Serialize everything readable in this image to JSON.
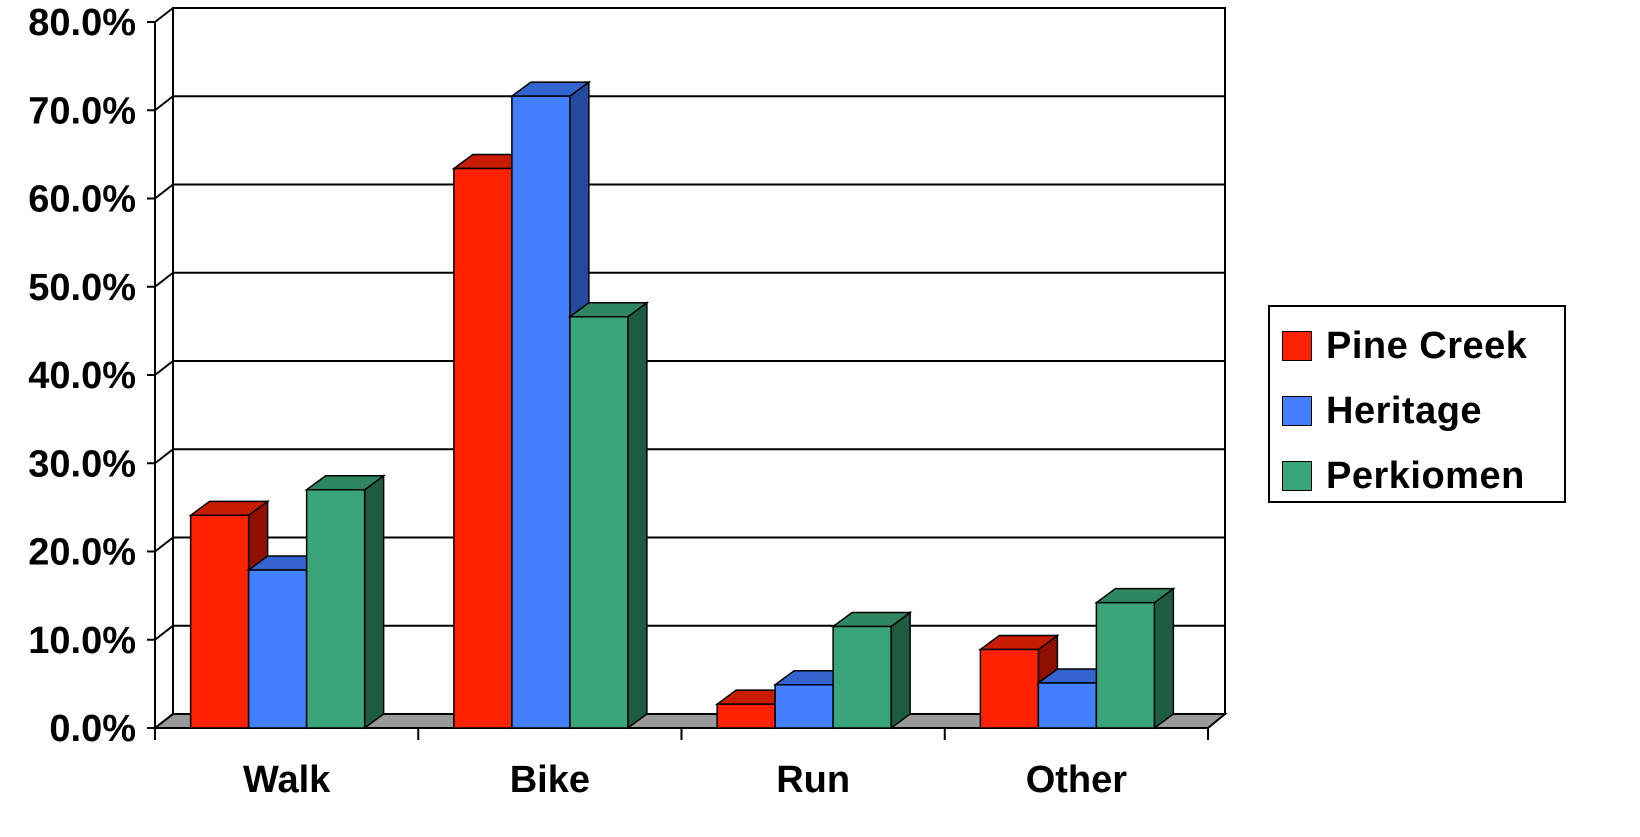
{
  "chart_data": {
    "type": "bar",
    "categories": [
      "Walk",
      "Bike",
      "Run",
      "Other"
    ],
    "series": [
      {
        "name": "Pine Creek",
        "values": [
          24.1,
          63.4,
          2.7,
          8.9
        ]
      },
      {
        "name": "Heritage",
        "values": [
          17.9,
          71.6,
          4.9,
          5.1
        ]
      },
      {
        "name": "Perkiomen",
        "values": [
          27.0,
          46.6,
          11.5,
          14.2
        ]
      }
    ],
    "yticks": [
      "0.0%",
      "10.0%",
      "20.0%",
      "30.0%",
      "40.0%",
      "50.0%",
      "60.0%",
      "70.0%",
      "80.0%"
    ],
    "ylim": [
      0,
      80
    ],
    "grid": true,
    "legend_position": "right",
    "style": "3d clustered column"
  },
  "colors": {
    "Pine Creek": {
      "front": "#ff2200",
      "top": "#c81c00",
      "side": "#8f1000"
    },
    "Heritage": {
      "front": "#4280ff",
      "top": "#3464d0",
      "side": "#234a9e"
    },
    "Perkiomen": {
      "front": "#3ba57a",
      "top": "#2e8761",
      "side": "#1e5c42"
    },
    "floor": "#999999"
  }
}
